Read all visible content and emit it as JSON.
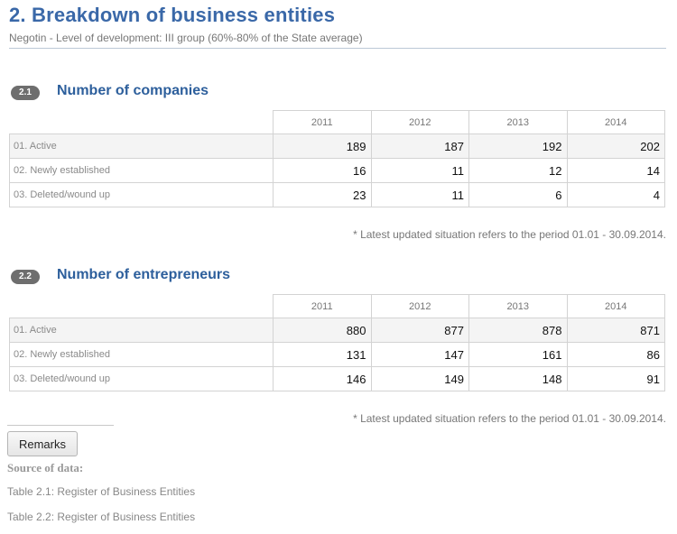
{
  "header": {
    "title": "2. Breakdown of business entities",
    "subtitle": "Negotin - Level of development: III group (60%-80% of the State average)"
  },
  "years": [
    "2011",
    "2012",
    "2013",
    "2014"
  ],
  "sections": [
    {
      "badge": "2.1",
      "title": "Number of companies",
      "rows": [
        {
          "label": "01. Active",
          "values": [
            "189",
            "187",
            "192",
            "202"
          ]
        },
        {
          "label": "02. Newly established",
          "values": [
            "16",
            "11",
            "12",
            "14"
          ]
        },
        {
          "label": "03. Deleted/wound up",
          "values": [
            "23",
            "11",
            "6",
            "4"
          ]
        }
      ],
      "note": "* Latest updated situation refers to the period 01.01 - 30.09.2014."
    },
    {
      "badge": "2.2",
      "title": "Number of entrepreneurs",
      "rows": [
        {
          "label": "01. Active",
          "values": [
            "880",
            "877",
            "878",
            "871"
          ]
        },
        {
          "label": "02. Newly established",
          "values": [
            "131",
            "147",
            "161",
            "86"
          ]
        },
        {
          "label": "03. Deleted/wound up",
          "values": [
            "146",
            "149",
            "148",
            "91"
          ]
        }
      ],
      "note": "* Latest updated situation refers to the period 01.01 - 30.09.2014."
    }
  ],
  "footer": {
    "remarks_label": "Remarks",
    "source_heading": "Source of data:",
    "sources": [
      "Table 2.1: Register of Business Entities",
      "Table 2.2: Register of Business Entities"
    ]
  }
}
